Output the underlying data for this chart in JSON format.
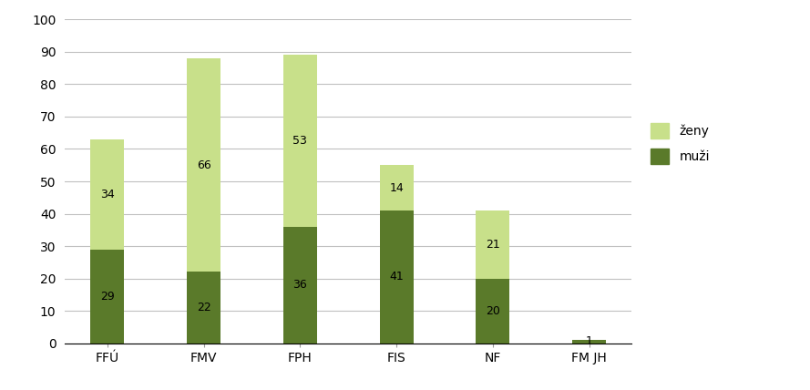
{
  "categories": [
    "FFÚ",
    "FMV",
    "FPH",
    "FIS",
    "NF",
    "FM JH"
  ],
  "muzi": [
    29,
    22,
    36,
    41,
    20,
    1
  ],
  "zeny": [
    34,
    66,
    53,
    14,
    21,
    0
  ],
  "muzi_color": "#5a7a2a",
  "zeny_color": "#c8e08a",
  "ylim": [
    0,
    100
  ],
  "yticks": [
    0,
    10,
    20,
    30,
    40,
    50,
    60,
    70,
    80,
    90,
    100
  ],
  "legend_zeny": "ženy",
  "legend_muzi": "muži",
  "label_fontsize": 9,
  "tick_fontsize": 10,
  "legend_fontsize": 10,
  "bar_width": 0.35,
  "background_color": "#ffffff",
  "grid_color": "#c0c0c0"
}
